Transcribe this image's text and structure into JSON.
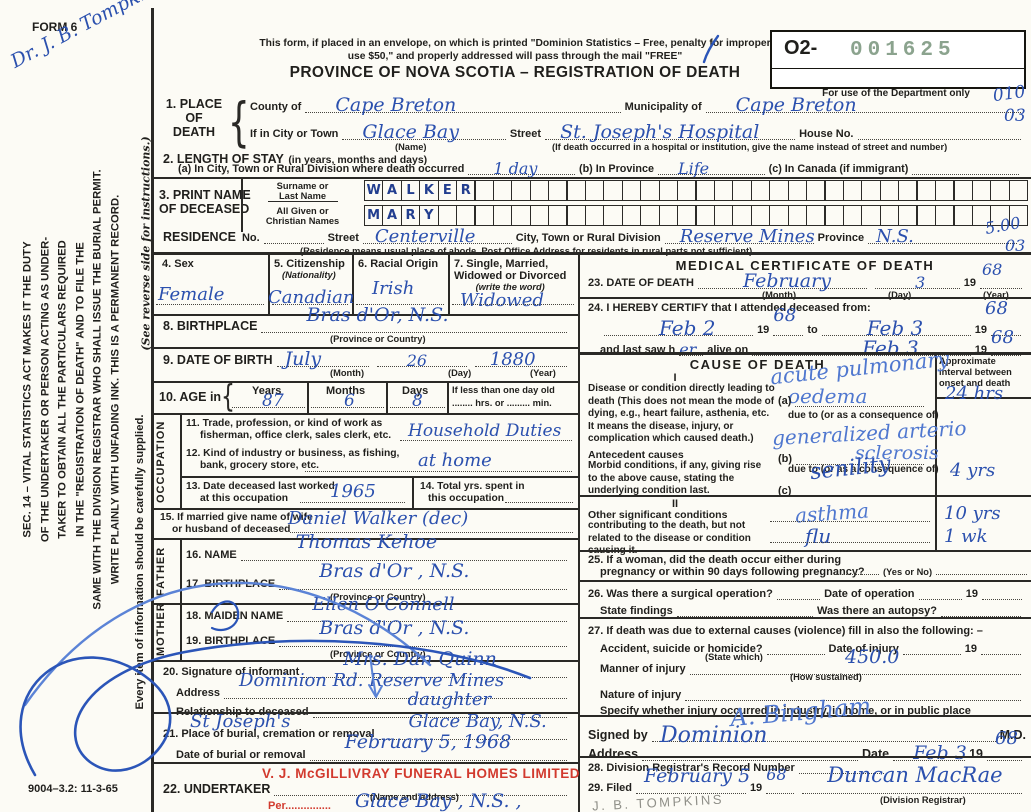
{
  "header": {
    "form_no": "FORM 6",
    "note1": "This form, if placed in an envelope, on which is printed \"Dominion Statistics – Free, penalty for improper",
    "note2": "use $50,\" and properly addressed will pass through the mail \"FREE\"",
    "title": "PROVINCE OF NOVA SCOTIA – REGISTRATION OF DEATH",
    "serial_prefix": "O2-",
    "serial_number": "001625",
    "dept_note": "For use of the Department only",
    "margin_code_1": "010",
    "margin_code_2": "03",
    "margin_code_3": "5.00",
    "margin_code_4": "03"
  },
  "sidebar": {
    "signature": "Dr. J. B. Tompkins",
    "sec14_lines": [
      "SEC. 14 – VITAL STATISTICS ACT MAKES IT THE DUTY",
      "OF THE UNDERTAKER OR PERSON ACTING AS UNDER-",
      "TAKER TO OBTAIN ALL THE PARTICULARS REQUIRED",
      "IN THE \"REGISTRATION OF DEATH\" AND TO FILE THE",
      "SAME WITH THE DIVISION REGISTRAR WHO SHALL ISSUE THE BURIAL PERMIT.",
      "WRITE PLAINLY WITH UNFADING INK. THIS IS A PERMANENT RECORD."
    ],
    "every_item": "Every item of information should be carefully supplied.",
    "reverse_note": "(See reverse side for instructions.)",
    "form_code": "9004–3.2: 11-3-65"
  },
  "s1": {
    "t1": "1. PLACE",
    "t2": "OF",
    "t3": "DEATH",
    "county_label": "County of",
    "county_value": "Cape Breton",
    "municipality_label": "Municipality of",
    "municipality_value": "Cape Breton",
    "city_label": "If in City or Town",
    "city_value": "Glace Bay",
    "name_hint": "(Name)",
    "street_label": "Street",
    "street_value": "St. Joseph's Hospital",
    "street_hint": "(If death occurred in a hospital or institution, give the name instead of street and number)",
    "house_label": "House No."
  },
  "s2": {
    "title": "2. LENGTH OF STAY",
    "sub": "(in years, months and days)",
    "a_label": "(a) In City, Town or Rural Division where death occurred",
    "a_value": "1 day",
    "b_label": "(b) In Province",
    "b_value": "Life",
    "c_label": "(c) In Canada (if immigrant)"
  },
  "s3": {
    "t1": "3. PRINT NAME",
    "t2": "OF DECEASED",
    "surname_label1": "Surname or",
    "surname_label2": "Last Name",
    "surname": "WALKER",
    "given_label1": "All Given or",
    "given_label2": "Christian Names",
    "given": "MARY"
  },
  "residence": {
    "title": "RESIDENCE",
    "no_label": "No.",
    "street_label": "Street",
    "street_value": "Centerville",
    "city_label": "City, Town or Rural Division",
    "city_value": "Reserve Mines",
    "province_label": "Province",
    "province_value": "N.S.",
    "hint": "(Residence means usual place of abode. Post Office Address for residents in rural parts not sufficient)"
  },
  "s4": {
    "label": "4. Sex",
    "value": "Female"
  },
  "s5": {
    "label": "5. Citizenship",
    "sub": "(Nationality)",
    "value": "Canadian"
  },
  "s6": {
    "label": "6. Racial Origin",
    "value": "Irish"
  },
  "s7": {
    "l1": "7. Single, Married,",
    "l2": "Widowed or Divorced",
    "l3": "(write the word)",
    "value": "Widowed"
  },
  "s8": {
    "label": "8. BIRTHPLACE",
    "value": "Bras d'Or,  N.S.",
    "hint": "(Province or Country)"
  },
  "s9": {
    "label": "9. DATE OF BIRTH",
    "month": "July",
    "day": "26",
    "year": "1880",
    "month_hint": "(Month)",
    "day_hint": "(Day)",
    "year_hint": "(Year)"
  },
  "s10": {
    "label": "10. AGE in",
    "years_h": "Years",
    "months_h": "Months",
    "days_h": "Days",
    "years": "87",
    "months": "6",
    "days": "8",
    "less_label": "If less than one day old",
    "hrs_label": "........ hrs. or ......... min."
  },
  "occupation": {
    "strip": "OCCUPATION",
    "s11_l1": "11. Trade, profession, or kind of work as",
    "s11_l2": "fisherman, office clerk, sales clerk, etc.",
    "s11_value": "Household Duties",
    "s12_l1": "12. Kind of industry or business, as fishing,",
    "s12_l2": "bank, grocery store, etc.",
    "s12_value": "at home",
    "s13_l1": "13. Date deceased last worked",
    "s13_l2": "at this occupation",
    "s13_value": "1965",
    "s14_l1": "14. Total yrs. spent in",
    "s14_l2": "this occupation"
  },
  "s15": {
    "l1": "15. If married give name of wife",
    "l2": "or husband of deceased",
    "value": "Daniel  Walker (dec)"
  },
  "father": {
    "strip": "FATHER",
    "name_label": "16. NAME",
    "name_value": "Thomas  Kehoe",
    "bp_label": "17. BIRTHPLACE",
    "bp_value": "Bras d'Or ,  N.S.",
    "bp_hint": "(Province or Country)"
  },
  "mother": {
    "strip": "MOTHER",
    "maiden_label": "18. MAIDEN NAME",
    "maiden_value": "Ellen  O'Connell",
    "bp_label": "19. BIRTHPLACE",
    "bp_value": "Bras d'Or ,  N.S.",
    "bp_hint": "(Province or Country)"
  },
  "s20": {
    "sig_label": "20. Signature of informant",
    "sig_value": "Mrs. Dan Quinn",
    "addr_label": "Address",
    "addr_value": "Dominion  Rd.  Reserve  Mines",
    "rel_label": "Relationship to deceased",
    "rel_value": "daughter"
  },
  "s21": {
    "place_label": "21. Place of burial, cremation or removal",
    "place_value1": "St Joseph's",
    "place_value2": "Glace  Bay, N.S.",
    "date_label": "Date of burial or removal",
    "date_value": "February  5, 1968"
  },
  "s22": {
    "label": "22. UNDERTAKER",
    "stamp": "V. J. McGILLIVRAY FUNERAL HOMES LIMITED",
    "hint": "(Name and address)",
    "per": "Per...............",
    "value": "Glace  Bay , N.S. ,"
  },
  "medical": {
    "title": "MEDICAL CERTIFICATE OF DEATH",
    "s23_label": "23. DATE OF DEATH",
    "s23_month": "February",
    "s23_day": "3",
    "s23_y19": "19",
    "s23_year": "68",
    "month_hint": "(Month)",
    "day_hint": "(Day)",
    "year_hint": "(Year)",
    "s24_label": "24. I HEREBY CERTIFY that I attended deceased from:",
    "s24_from": "Feb 2",
    "s24_y1": "68",
    "to": "to",
    "s24_to": "Feb 3",
    "s24_y2": "68",
    "s24_lastsaw": "and last saw h",
    "s24_er": "er",
    "s24_alive": "alive on",
    "s24_lastdate": "Feb 3",
    "s24_y3": "68",
    "y19": "19"
  },
  "cause": {
    "title": "CAUSE OF DEATH",
    "interval_header": "Approximate interval between onset and death",
    "roman1": "I",
    "lead_text": "Disease or condition directly leading to death (This does not mean the mode of dying, e.g., heart failure, asthenia, etc. It means the disease, injury, or complication which caused death.)",
    "a_label": "(a)",
    "a_value1": "acute pulmonary",
    "a_value2": "oedema",
    "a_interval": "24 hrs",
    "dueto": "due to (or as a consequence of)",
    "a_due_value1": "generalized arterio",
    "a_due_value2": "sclerosis",
    "antecedent_title": "Antecedent causes",
    "antecedent_text": "Morbid conditions, if any, giving rise to the above cause, stating the underlying condition last.",
    "b_label": "(b)",
    "b_due_value": "senility",
    "b_interval": "4 yrs",
    "c_label": "(c)",
    "roman2": "II",
    "other_title": "Other significant conditions",
    "other_text": "contributing to the death, but not related to the disease or condition causing it.",
    "other_value1": "asthma",
    "other_interval1": "10 yrs",
    "other_value2": "flu",
    "other_interval2": "1 wk"
  },
  "s25": {
    "l1": "25. If a woman, did the death occur either during",
    "l2": "pregnancy or within 90 days following pregnancy?",
    "hint": "(Yes or No)"
  },
  "s26": {
    "l1a": "26. Was there a surgical operation?",
    "l1b": "Date of operation",
    "y19": "19",
    "l2a": "State findings",
    "l2b": "Was there an autopsy?"
  },
  "s27": {
    "intro": "27. If death was due to external causes (violence) fill in also the following: –",
    "l1a": "Accident, suicide or homicide?",
    "hint1": "(State which)",
    "l1b": "Date of injury",
    "y19": "19",
    "manner": "Manner of injury",
    "manner_hw": "450.0",
    "hint2": "(How sustained)",
    "nature": "Nature of injury",
    "specify": "Specify whether injury occurred in industry, in home, or in public place"
  },
  "signed": {
    "label": "Signed by",
    "sig": "A. Bingham",
    "md": "M.D.",
    "addr_label": "Address",
    "addr_value": "Dominion",
    "date_label": "Date",
    "date_value": "Feb 3",
    "y19": "19",
    "year": "68"
  },
  "s28": {
    "label": "28. Division Registrar's Record Number"
  },
  "s29": {
    "label": "29. Filed",
    "filed": "February 5",
    "y19": "19",
    "year": "68",
    "registrar": "Duncan  MacRae",
    "hint": "(Division Registrar)",
    "pencil": "J. B. TOMPKINS"
  }
}
